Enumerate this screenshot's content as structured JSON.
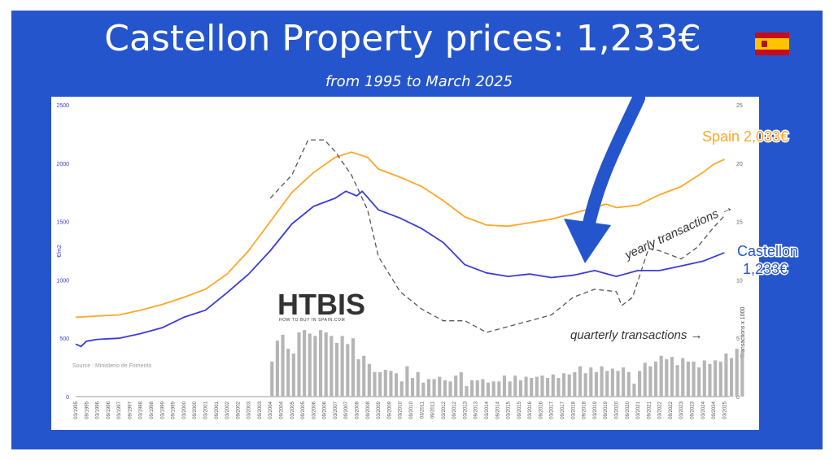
{
  "header": {
    "title": "Castellon Property prices: 1,233€",
    "subtitle": "from 1995 to March 2025",
    "flag_icon": "spain-flag-icon"
  },
  "logo": {
    "text": "HTBIS",
    "tagline": "HOW TO BUY IN SPAIN.COM"
  },
  "colors": {
    "background": "#2455cc",
    "castellon": "#3b3bd9",
    "spain": "#ffa726",
    "bars": "#b5b5b5",
    "yearly": "#555555"
  },
  "chart_data": {
    "type": "line",
    "source": "Source : Ministerio de Fomento",
    "ylabel_left": "€/m2",
    "ylabel_right": "Transactions x 1000",
    "ylim_left": [
      0,
      2500
    ],
    "yticks_left": [
      0,
      500,
      1000,
      1500,
      2000,
      2500
    ],
    "ylim_right": [
      0,
      25
    ],
    "yticks_right": [
      0,
      5,
      10,
      15,
      20,
      25
    ],
    "x_start_year": 1995,
    "x_end_year": 2025.25,
    "x_tick_labels": [
      "03/1995",
      "09/1995",
      "03/1996",
      "09/1996",
      "03/1997",
      "09/1997",
      "03/1998",
      "09/1998",
      "03/1999",
      "09/1999",
      "03/2000",
      "09/2000",
      "03/2001",
      "09/2001",
      "03/2002",
      "09/2002",
      "03/2003",
      "09/2003",
      "03/2004",
      "09/2004",
      "03/2005",
      "09/2005",
      "03/2006",
      "09/2006",
      "03/2007",
      "09/2007",
      "03/2008",
      "09/2008",
      "03/2009",
      "09/2009",
      "03/2010",
      "09/2010",
      "03/2011",
      "09/2011",
      "03/2012",
      "09/2012",
      "03/2013",
      "09/2013",
      "03/2014",
      "09/2014",
      "03/2015",
      "09/2015",
      "03/2016",
      "09/2016",
      "03/2017",
      "09/2017",
      "03/2018",
      "09/2018",
      "03/2019",
      "09/2019",
      "03/2020",
      "09/2020",
      "03/2021",
      "09/2021",
      "03/2022",
      "09/2022",
      "03/2023",
      "09/2023",
      "03/2024",
      "09/2024",
      "03/2025"
    ],
    "series": [
      {
        "name": "Spain 2,033€",
        "label_line1": "Spain 2,033€",
        "color": "#ffa726",
        "axis": "left",
        "points": [
          [
            1995,
            680
          ],
          [
            1996,
            690
          ],
          [
            1997,
            700
          ],
          [
            1998,
            740
          ],
          [
            1999,
            790
          ],
          [
            2000,
            850
          ],
          [
            2001,
            920
          ],
          [
            2002,
            1050
          ],
          [
            2003,
            1250
          ],
          [
            2004,
            1500
          ],
          [
            2005,
            1750
          ],
          [
            2006,
            1920
          ],
          [
            2007,
            2050
          ],
          [
            2007.75,
            2095
          ],
          [
            2008.5,
            2050
          ],
          [
            2009,
            1950
          ],
          [
            2010,
            1880
          ],
          [
            2011,
            1800
          ],
          [
            2012,
            1680
          ],
          [
            2013,
            1540
          ],
          [
            2014,
            1470
          ],
          [
            2015,
            1460
          ],
          [
            2016,
            1490
          ],
          [
            2017,
            1520
          ],
          [
            2018,
            1570
          ],
          [
            2019,
            1620
          ],
          [
            2019.5,
            1650
          ],
          [
            2020,
            1620
          ],
          [
            2021,
            1640
          ],
          [
            2022,
            1730
          ],
          [
            2023,
            1800
          ],
          [
            2024,
            1920
          ],
          [
            2024.5,
            1990
          ],
          [
            2025,
            2033
          ]
        ]
      },
      {
        "name": "Castellon 1,233€",
        "label_line1": "Castellon",
        "label_line2": "1,233€",
        "color": "#3b3bd9",
        "axis": "left",
        "points": [
          [
            1995,
            450
          ],
          [
            1995.25,
            430
          ],
          [
            1995.5,
            475
          ],
          [
            1996,
            490
          ],
          [
            1997,
            500
          ],
          [
            1998,
            540
          ],
          [
            1999,
            590
          ],
          [
            2000,
            680
          ],
          [
            2001,
            740
          ],
          [
            2002,
            890
          ],
          [
            2003,
            1050
          ],
          [
            2004,
            1250
          ],
          [
            2005,
            1480
          ],
          [
            2006,
            1630
          ],
          [
            2007,
            1700
          ],
          [
            2007.5,
            1760
          ],
          [
            2008,
            1720
          ],
          [
            2008.25,
            1760
          ],
          [
            2009,
            1600
          ],
          [
            2010,
            1530
          ],
          [
            2011,
            1440
          ],
          [
            2012,
            1320
          ],
          [
            2013,
            1130
          ],
          [
            2014,
            1060
          ],
          [
            2015,
            1030
          ],
          [
            2016,
            1050
          ],
          [
            2017,
            1020
          ],
          [
            2018,
            1040
          ],
          [
            2019,
            1080
          ],
          [
            2020,
            1030
          ],
          [
            2021,
            1080
          ],
          [
            2022,
            1080
          ],
          [
            2023,
            1120
          ],
          [
            2024,
            1160
          ],
          [
            2025,
            1233
          ]
        ]
      },
      {
        "name": "yearly transactions",
        "label_line1": "yearly transactions →",
        "color": "#555555",
        "axis": "right",
        "dashed": true,
        "points": [
          [
            2004,
            17
          ],
          [
            2005,
            19
          ],
          [
            2005.75,
            22
          ],
          [
            2006.5,
            22
          ],
          [
            2007,
            21
          ],
          [
            2007.75,
            19
          ],
          [
            2008.5,
            16
          ],
          [
            2009,
            12
          ],
          [
            2010,
            9
          ],
          [
            2011,
            7.5
          ],
          [
            2012,
            6.5
          ],
          [
            2013,
            6.5
          ],
          [
            2014,
            5.5
          ],
          [
            2015,
            6
          ],
          [
            2016,
            6.5
          ],
          [
            2017,
            7
          ],
          [
            2018,
            8.5
          ],
          [
            2019,
            9.2
          ],
          [
            2020,
            9
          ],
          [
            2020.25,
            7.8
          ],
          [
            2020.75,
            8.5
          ],
          [
            2021.5,
            12.7
          ],
          [
            2022,
            12.5
          ],
          [
            2023,
            11.8
          ],
          [
            2023.75,
            12.8
          ],
          [
            2024.5,
            14.5
          ],
          [
            2025,
            15.5
          ]
        ]
      },
      {
        "name": "quarterly transactions",
        "label_line1": "quarterly transactions →",
        "color": "#b5b5b5",
        "axis": "right",
        "type": "bar",
        "start": 2004,
        "values": [
          3.0,
          4.8,
          5.3,
          4.1,
          3.7,
          5.5,
          5.7,
          5.4,
          5.2,
          5.7,
          5.5,
          5.2,
          4.6,
          5.2,
          4.5,
          5.0,
          3.2,
          3.5,
          2.8,
          2.1,
          2.1,
          2.3,
          2.2,
          2.0,
          1.3,
          2.6,
          1.6,
          2.1,
          1.2,
          1.5,
          1.5,
          1.7,
          1.4,
          1.3,
          1.8,
          2.1,
          0.9,
          1.4,
          1.4,
          1.5,
          1.2,
          1.3,
          1.3,
          1.8,
          1.3,
          1.8,
          1.4,
          1.7,
          1.6,
          1.7,
          1.8,
          1.6,
          1.9,
          1.6,
          2.0,
          1.9,
          2.1,
          2.6,
          2.0,
          2.5,
          2.1,
          2.6,
          2.2,
          2.4,
          2.2,
          2.5,
          2.1,
          1.1,
          2.2,
          2.9,
          2.6,
          3.0,
          3.5,
          3.2,
          3.4,
          2.7,
          3.3,
          3.0,
          3.0,
          2.5,
          3.1,
          2.8,
          3.1,
          3.0,
          3.7,
          3.3,
          4.1,
          3.9
        ]
      }
    ]
  }
}
